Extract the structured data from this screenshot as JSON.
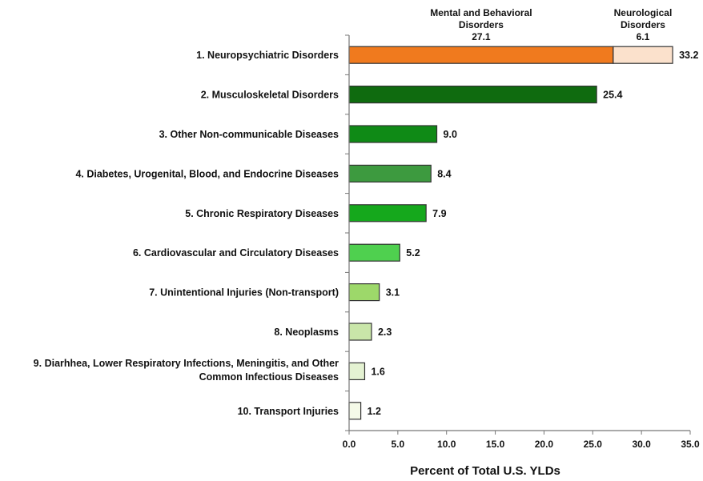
{
  "chart_data": {
    "type": "bar",
    "orientation": "horizontal",
    "stacked": true,
    "xlabel": "Percent of Total U.S. YLDs",
    "xlim": [
      0,
      35
    ],
    "xticks": [
      "0.0",
      "5.0",
      "10.0",
      "15.0",
      "20.0",
      "25.0",
      "30.0",
      "35.0"
    ],
    "grid": false,
    "categories": [
      [
        "1.  Neuropsychiatric Disorders"
      ],
      [
        "2.  Musculoskeletal Disorders"
      ],
      [
        "3.  Other Non-communicable Diseases"
      ],
      [
        "4.  Diabetes, Urogenital, Blood, and Endocrine Diseases"
      ],
      [
        "5.  Chronic Respiratory Diseases"
      ],
      [
        "6.  Cardiovascular and Circulatory Diseases"
      ],
      [
        "7.  Unintentional Injuries (Non-transport)"
      ],
      [
        "8.  Neoplasms"
      ],
      [
        "9.  Diarhhea, Lower Respiratory Infections, Meningitis, and Other",
        "Common Infectious Diseases"
      ],
      [
        "10.  Transport Injuries"
      ]
    ],
    "totals": [
      "33.2",
      "25.4",
      "9.0",
      "8.4",
      "7.9",
      "5.2",
      "3.1",
      "2.3",
      "1.6",
      "1.2"
    ],
    "segments": [
      [
        {
          "value": 27.1,
          "color": "#F07A1E"
        },
        {
          "value": 6.1,
          "color": "#FBE1CC"
        }
      ],
      [
        {
          "value": 25.4,
          "color": "#0F6B0F"
        }
      ],
      [
        {
          "value": 9.0,
          "color": "#0F8A16"
        }
      ],
      [
        {
          "value": 8.4,
          "color": "#3D9A3F"
        }
      ],
      [
        {
          "value": 7.9,
          "color": "#15A81C"
        }
      ],
      [
        {
          "value": 5.2,
          "color": "#4FD04F"
        }
      ],
      [
        {
          "value": 3.1,
          "color": "#9DD86A"
        }
      ],
      [
        {
          "value": 2.3,
          "color": "#C9E6A9"
        }
      ],
      [
        {
          "value": 1.6,
          "color": "#E4F2D2"
        }
      ],
      [
        {
          "value": 1.2,
          "color": "#F5FAE8"
        }
      ]
    ],
    "annotations": [
      {
        "lines": [
          "Mental and Behavioral",
          "Disorders",
          "27.1"
        ],
        "value": 27.1
      },
      {
        "lines": [
          "Neurological",
          "Disorders",
          "6.1"
        ],
        "value": 6.1
      }
    ],
    "bar_stroke_color": "#333333",
    "axis_color": "#777777"
  }
}
